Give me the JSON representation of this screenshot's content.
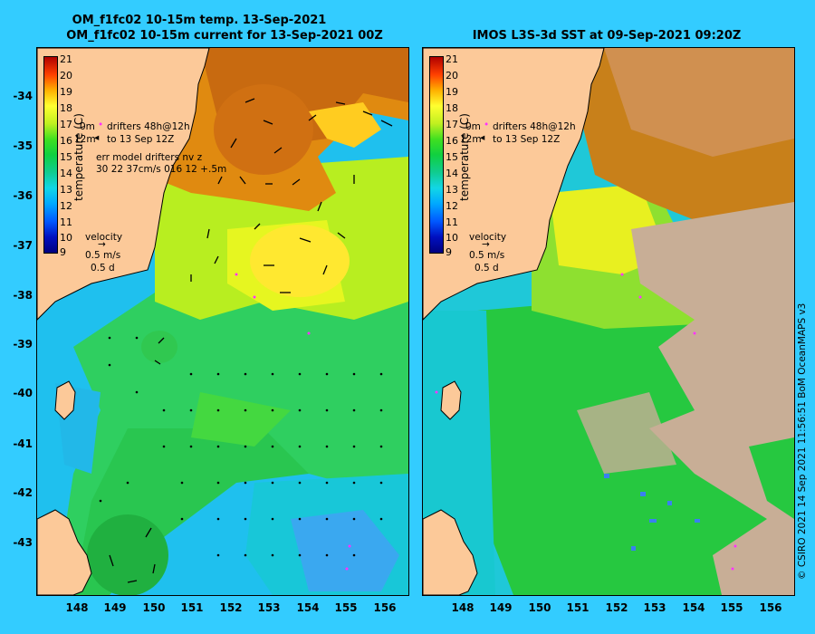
{
  "left_panel": {
    "title_line1": "OM_f1fc02 10-15m temp. 13-Sep-2021",
    "title_line2": "OM_f1fc02 10-15m current for 13-Sep-2021 00Z",
    "legend": {
      "drifter_line1_a": "0m",
      "drifter_line1_b": "drifters 48h@12h",
      "drifter_line2_a": "12m",
      "drifter_line2_b": "to 13 Sep 12Z",
      "err_line1": "err model drifters nv z",
      "err_line2": "30 22 37cm/s 016 12 +.5m",
      "velocity_title": "velocity",
      "velocity_speed": "0.5 m/s",
      "velocity_days": "0.5 d"
    }
  },
  "right_panel": {
    "title": "IMOS L3S-3d SST at 09-Sep-2021 09:20Z",
    "legend": {
      "drifter_line1_a": "0m",
      "drifter_line1_b": "drifters 48h@12h",
      "drifter_line2_a": "12m",
      "drifter_line2_b": "to 13 Sep 12Z",
      "velocity_title": "velocity",
      "velocity_speed": "0.5 m/s",
      "velocity_days": "0.5 d"
    }
  },
  "colorbar": {
    "label": "temperature (C)",
    "ticks": [
      "21",
      "20",
      "19",
      "18",
      "17",
      "16",
      "15",
      "14",
      "13",
      "12",
      "11",
      "10",
      "9"
    ],
    "min": 9,
    "max": 21
  },
  "axes": {
    "lat_ticks": [
      "-34",
      "-35",
      "-36",
      "-37",
      "-38",
      "-39",
      "-40",
      "-41",
      "-42",
      "-43"
    ],
    "lon_ticks": [
      "148",
      "149",
      "150",
      "151",
      "152",
      "153",
      "154",
      "155",
      "156"
    ],
    "lat_range": [
      -43.9,
      -33.0
    ],
    "lon_range": [
      147.1,
      156.5
    ]
  },
  "credit": "© CSIRO 2021  14 Sep 2021 11:56:51 BoM OceanMAPS v3",
  "colors": {
    "land": "#fcc999",
    "cloud_mask": "#c8ae96",
    "background": "#33ccff"
  }
}
